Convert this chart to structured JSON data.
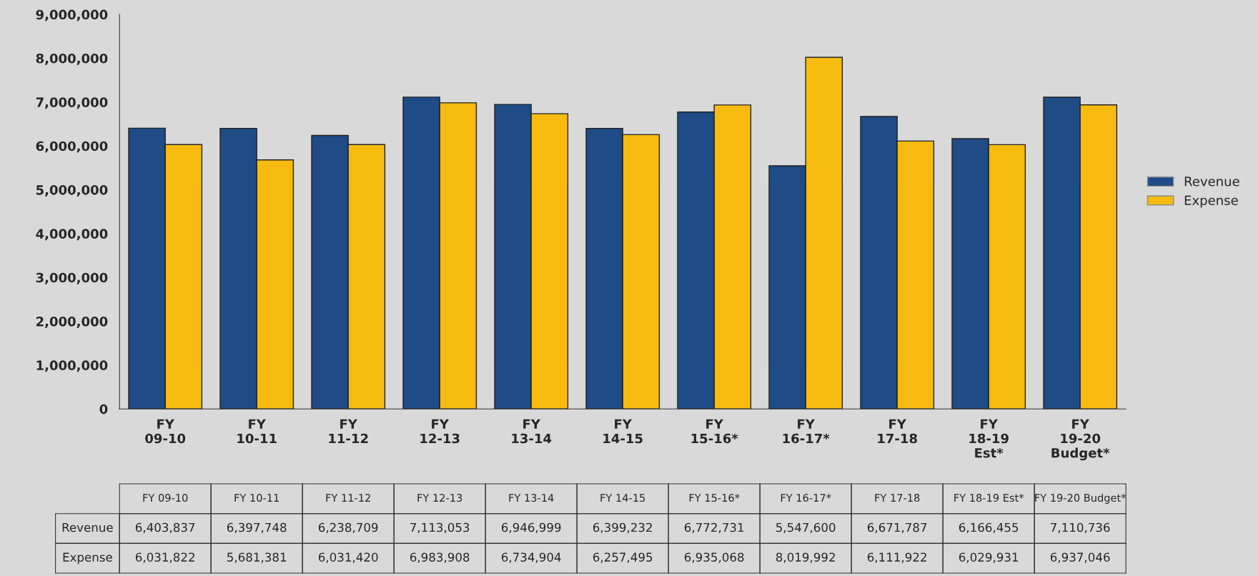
{
  "chart_data": {
    "type": "bar",
    "categories": [
      "FY\n09-10",
      "FY\n10-11",
      "FY\n11-12",
      "FY\n12-13",
      "FY\n13-14",
      "FY\n14-15",
      "FY\n15-16*",
      "FY\n16-17*",
      "FY\n17-18",
      "FY\n18-19\nEst*",
      "FY\n19-20\nBudget*"
    ],
    "series": [
      {
        "name": "Revenue",
        "color": "#1f4b86",
        "values": [
          6403837,
          6397748,
          6238709,
          7113053,
          6946999,
          6399232,
          6772731,
          5547600,
          6671787,
          6166455,
          7110736
        ],
        "value_labels": [
          "6,403,837",
          "6,397,748",
          "6,238,709",
          "7,113,053",
          "6,946,999",
          "6,399,232",
          "6,772,731",
          "5,547,600",
          "6,671,787",
          "6,166,455",
          "7,110,736"
        ]
      },
      {
        "name": "Expense",
        "color": "#f7bb10",
        "values": [
          6031822,
          5681381,
          6031420,
          6983908,
          6734904,
          6257495,
          6935068,
          8019992,
          6111922,
          6029931,
          6937046
        ],
        "value_labels": [
          "6,031,822",
          "5,681,381",
          "6,031,420",
          "6,983,908",
          "6,734,904",
          "6,257,495",
          "6,935,068",
          "8,019,992",
          "6,111,922",
          "6,029,931",
          "6,937,046"
        ]
      }
    ],
    "ylim": [
      0,
      9000000
    ],
    "yticks": [
      {
        "value": 0,
        "label": "0"
      },
      {
        "value": 1000000,
        "label": "1,000,000"
      },
      {
        "value": 2000000,
        "label": "2,000,000"
      },
      {
        "value": 3000000,
        "label": "3,000,000"
      },
      {
        "value": 4000000,
        "label": "4,000,000"
      },
      {
        "value": 5000000,
        "label": "5,000,000"
      },
      {
        "value": 6000000,
        "label": "6,000,000"
      },
      {
        "value": 7000000,
        "label": "7,000,000"
      },
      {
        "value": 8000000,
        "label": "8,000,000"
      },
      {
        "value": 9000000,
        "label": "9,000,000"
      }
    ],
    "grid": false,
    "legend": "right"
  }
}
